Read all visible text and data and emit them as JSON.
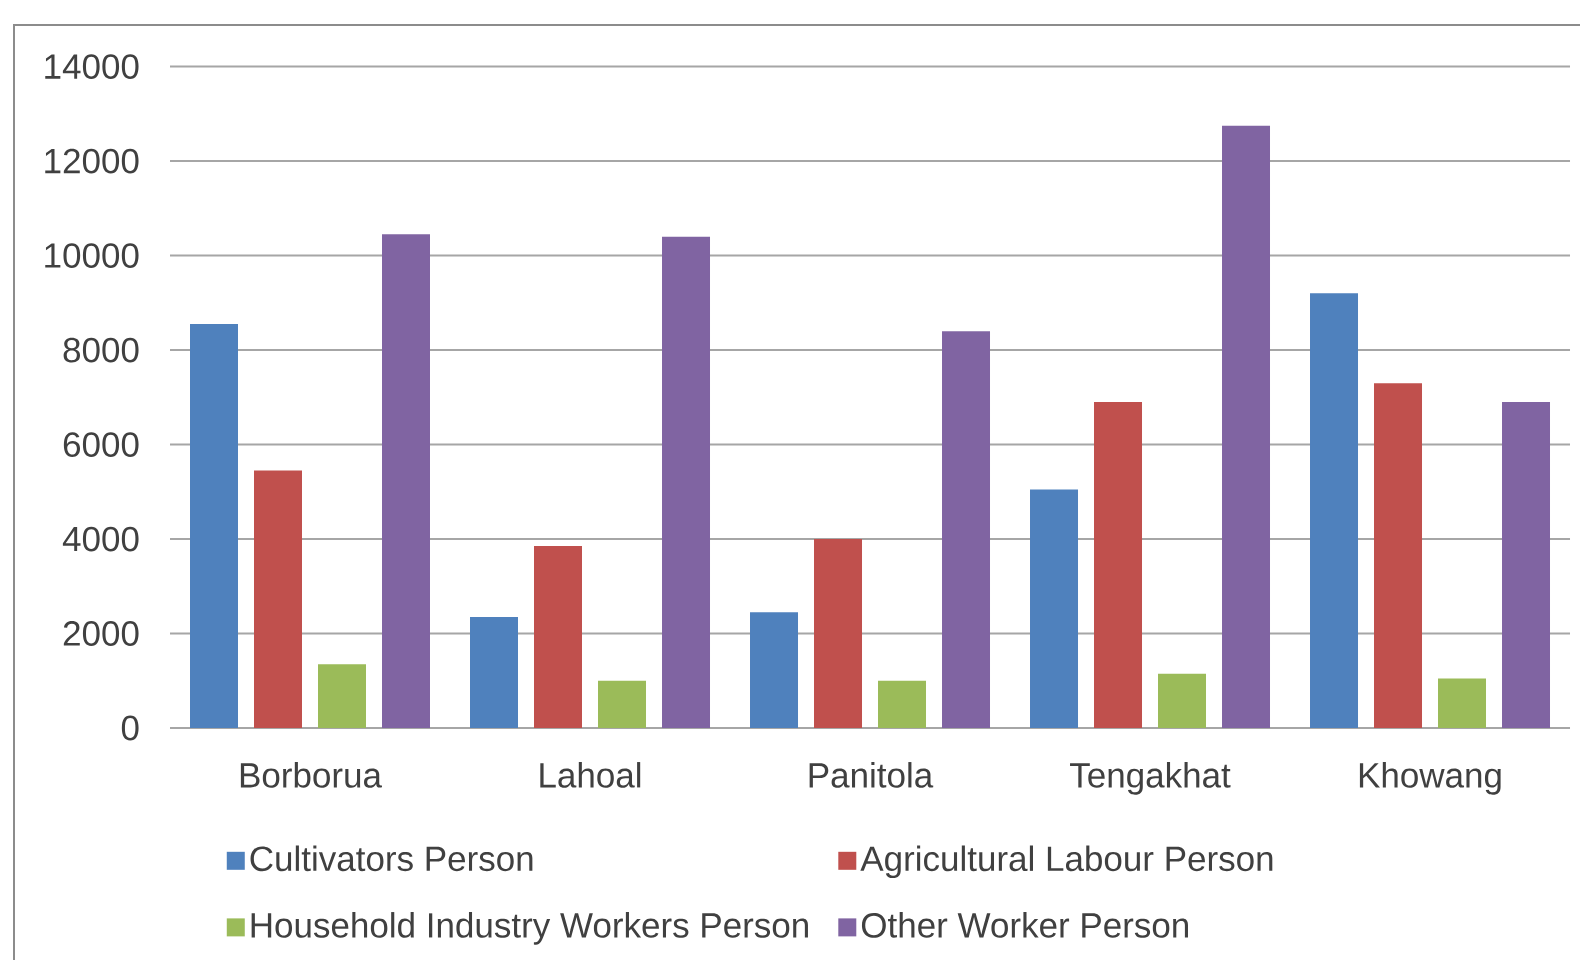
{
  "chart_data": {
    "type": "bar",
    "categories": [
      "Borborua",
      "Lahoal",
      "Panitola",
      "Tengakhat",
      "Khowang"
    ],
    "series": [
      {
        "name": "Cultivators Person",
        "color": "#4f81bd",
        "values": [
          8550,
          2350,
          2450,
          5050,
          9200
        ]
      },
      {
        "name": "Agricultural Labour Person",
        "color": "#c0504d",
        "values": [
          5450,
          3850,
          4000,
          6900,
          7300
        ]
      },
      {
        "name": "Household Industry Workers Person",
        "color": "#9bbb59",
        "values": [
          1350,
          1000,
          1000,
          1150,
          1050
        ]
      },
      {
        "name": "Other Worker Person",
        "color": "#8064a2",
        "values": [
          10450,
          10400,
          8400,
          12750,
          6900
        ]
      }
    ],
    "ylim": [
      0,
      14000
    ],
    "yticks": [
      0,
      2000,
      4000,
      6000,
      8000,
      10000,
      12000,
      14000
    ],
    "grid": "y",
    "legend": "bottom"
  }
}
